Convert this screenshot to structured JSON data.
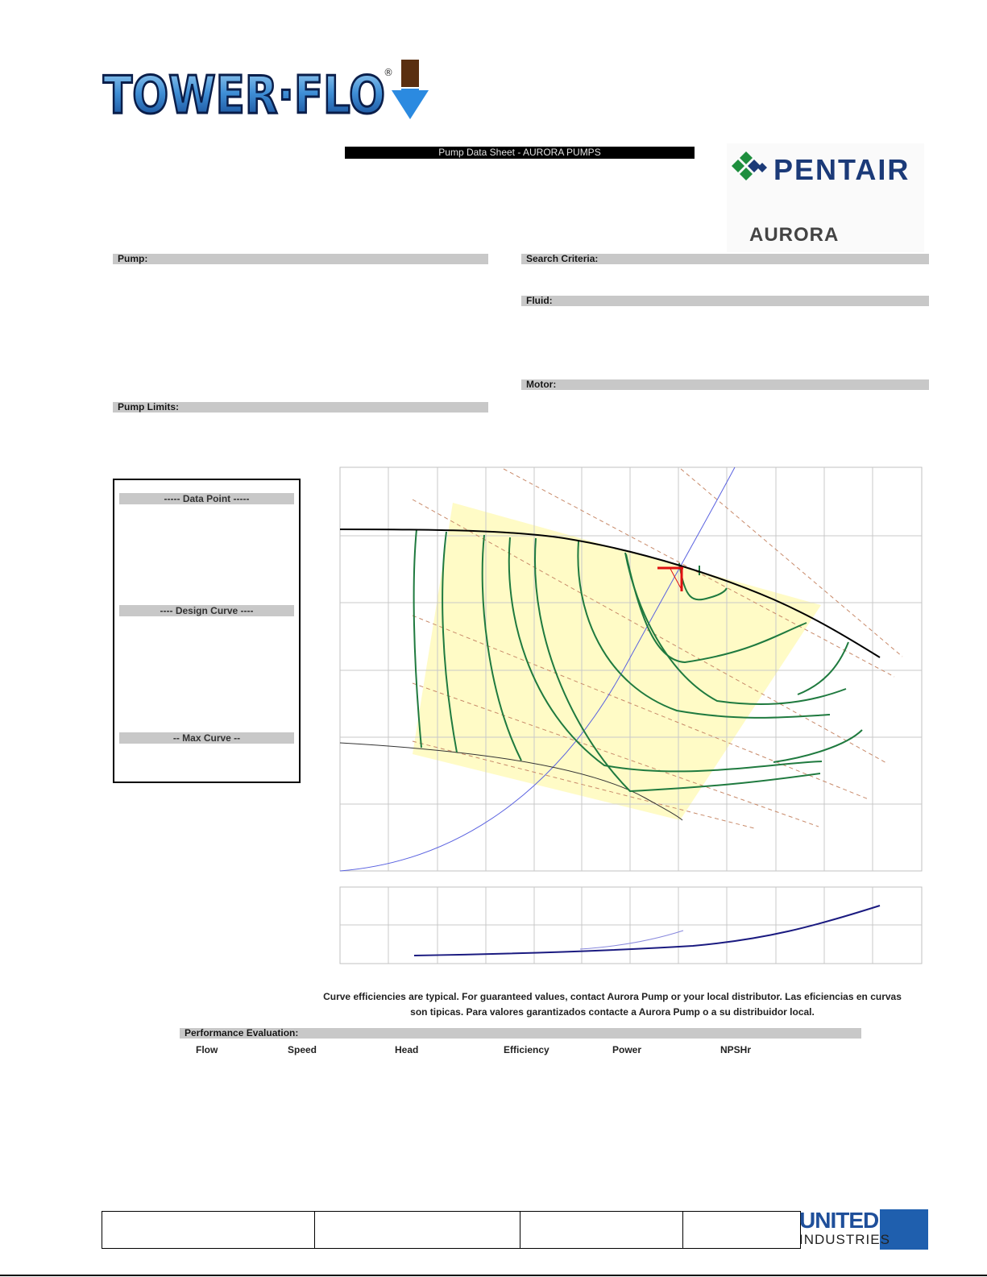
{
  "header": {
    "brand_logo": "TOWER-FLO",
    "title": "Pump Data Sheet  -  AURORA PUMPS",
    "partner_logo": "PENTAIR",
    "partner_sub": "AURORA"
  },
  "sections": {
    "pump": "Pump:",
    "search_criteria": "Search Criteria:",
    "fluid": "Fluid:",
    "motor": "Motor:",
    "pump_limits": "Pump Limits:"
  },
  "legend": {
    "data_point": "----- Data Point -----",
    "design_curve": "---- Design Curve ----",
    "max_curve": "-- Max Curve --"
  },
  "note": "Curve efficiencies are typical. For guaranteed values, contact Aurora Pump or your local distributor. Las eficiencias en curvas son tipicas. Para valores garantizados contacte a Aurora Pump o a su distribuidor local.",
  "performance": {
    "title": "Performance Evaluation:",
    "columns": [
      "Flow",
      "Speed",
      "Head",
      "Efficiency",
      "Power",
      "NPSHr"
    ]
  },
  "footer": {
    "logo_line1": "UNITED",
    "logo_line2": "INDUSTRIES"
  },
  "colors": {
    "efficiency_curves": "#1f7a3f",
    "system_curve": "#5a62e0",
    "head_curve": "#000000",
    "operating_region": "#fffbc4",
    "design_point": "#e01010",
    "power_curve": "#1a1a80",
    "speed_lines": "#c07040"
  }
}
